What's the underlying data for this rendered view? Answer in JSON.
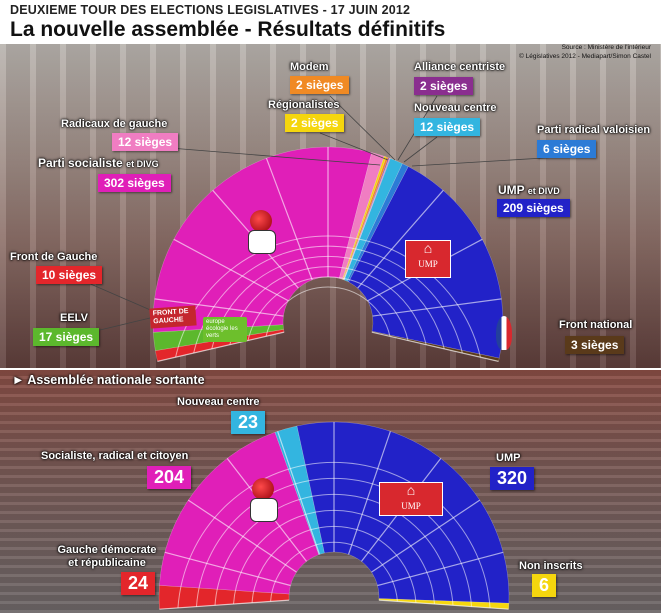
{
  "header": {
    "supertitle": "DEUXIEME TOUR DES ELECTIONS LEGISLATIVES - 17 JUIN 2012",
    "title": "La nouvelle assemblée - Résultats définitifs",
    "source_line1": "Source : Ministère de l'intérieur",
    "source_line2": "© Législatives 2012 - Mediapart/Simon Castel"
  },
  "section2_title": "► Assemblée nationale sortante",
  "chart_data": [
    {
      "type": "parliament",
      "title": "La nouvelle assemblée - Résultats définitifs",
      "total_seats": 577,
      "series": [
        {
          "name": "Front de Gauche",
          "seats": 10,
          "label": "10 sièges",
          "color": "#e3262b"
        },
        {
          "name": "EELV",
          "seats": 17,
          "label": "17 sièges",
          "color": "#5cb82d"
        },
        {
          "name": "Parti socialiste",
          "name_suffix": "et DIVG",
          "seats": 302,
          "label": "302 sièges",
          "color": "#e01fb8"
        },
        {
          "name": "Radicaux de gauche",
          "seats": 12,
          "label": "12 sièges",
          "color": "#f07dc2"
        },
        {
          "name": "Régionalistes",
          "seats": 2,
          "label": "2 sièges",
          "color": "#f5d60e"
        },
        {
          "name": "Modem",
          "seats": 2,
          "label": "2 sièges",
          "color": "#f08a24"
        },
        {
          "name": "Alliance centriste",
          "seats": 2,
          "label": "2 sièges",
          "color": "#8a2e8f"
        },
        {
          "name": "Nouveau centre",
          "seats": 12,
          "label": "12 sièges",
          "color": "#33b5e0"
        },
        {
          "name": "Parti radical valoisien",
          "seats": 6,
          "label": "6 sièges",
          "color": "#2c7bd6"
        },
        {
          "name": "UMP",
          "name_suffix": "et DIVD",
          "seats": 209,
          "label": "209 sièges",
          "color": "#2222c8"
        },
        {
          "name": "Front national",
          "seats": 3,
          "label": "3 sièges",
          "color": "#5a3a1a"
        }
      ]
    },
    {
      "type": "parliament",
      "title": "Assemblée nationale sortante",
      "total_seats": 577,
      "series": [
        {
          "name": "Gauche démocrate et républicaine",
          "seats": 24,
          "label": "24",
          "color": "#e3262b"
        },
        {
          "name": "Socialiste, radical et citoyen",
          "seats": 204,
          "label": "204",
          "color": "#e01fb8"
        },
        {
          "name": "Nouveau centre",
          "seats": 23,
          "label": "23",
          "color": "#33b5e0"
        },
        {
          "name": "UMP",
          "seats": 320,
          "label": "320",
          "color": "#2222c8"
        },
        {
          "name": "Non inscrits",
          "seats": 6,
          "label": "6",
          "color": "#f5d60e"
        }
      ]
    }
  ],
  "logos": {
    "ump": "UMP",
    "front_de_gauche": "FRONT DE GAUCHE",
    "eelv": "europe écologie les verts"
  }
}
